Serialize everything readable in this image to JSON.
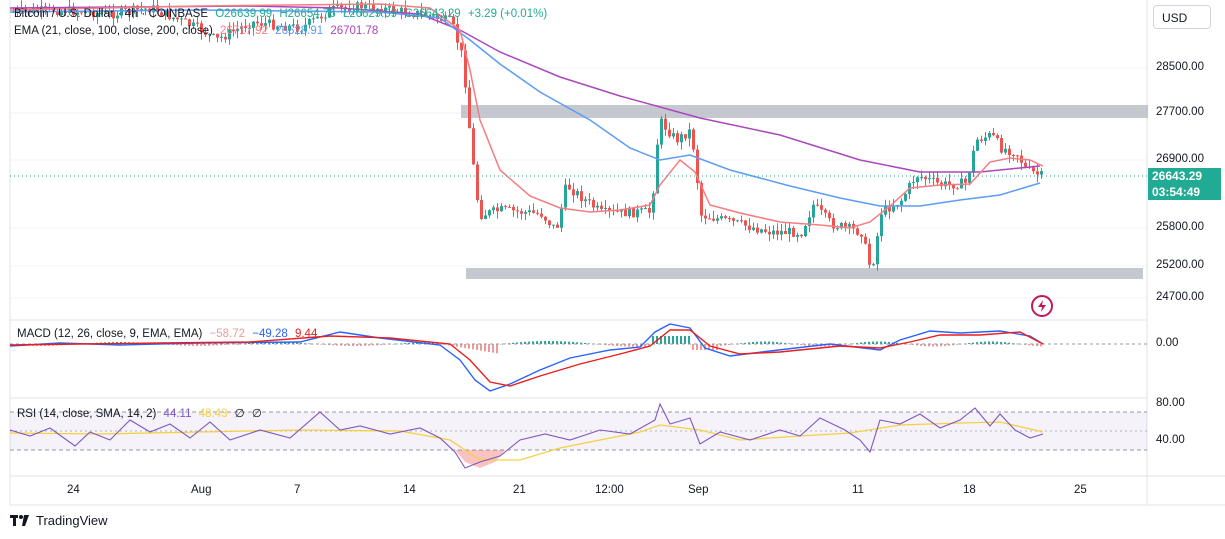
{
  "legend": {
    "symbol": "Bitcoin / U.S. Dollar",
    "interval": "4h",
    "exchange": "COINBASE",
    "open": "O26639.99",
    "high": "H26654.76",
    "low": "L26629.09",
    "close": "C26643.29",
    "change": "+3.29 (+0.01%)",
    "ema_label": "EMA (21, close, 100, close, 200, close)",
    "ema_values": [
      "26717.92",
      "26528.91",
      "26701.78"
    ],
    "macd_label": "MACD (12, 26, close, 9, EMA, EMA)",
    "macd_values": [
      "−58.72",
      "−49.28",
      "9.44"
    ],
    "rsi_label": "RSI (14, close, SMA, 14, 2)",
    "rsi_values": [
      "44.11",
      "48.43",
      "∅",
      "∅"
    ]
  },
  "currency_button": "USD",
  "last_price": "26643.29",
  "countdown": "03:54:49",
  "price_axis": [
    "28500.00",
    "27700.00",
    "26900.00",
    "25800.00",
    "25200.00",
    "24700.00"
  ],
  "macd_axis": [
    "0.00"
  ],
  "rsi_axis": [
    "80.00",
    "40.00"
  ],
  "time_axis": [
    "24",
    "Aug",
    "7",
    "14",
    "21",
    "12:00",
    "Sep",
    "11",
    "18",
    "25"
  ],
  "branding": "TradingView",
  "colors": {
    "up": "#26a69a",
    "down": "#ef5350",
    "ema21": "#f77c80",
    "ema100": "#5b9cf6",
    "ema200": "#ab47bc",
    "zone": "#b2b5be",
    "price_tag": "#22ab94"
  },
  "chart_data": {
    "type": "candlestick",
    "zones": [
      [
        27600,
        27760
      ],
      [
        25100,
        25240
      ]
    ],
    "ema21_path": [
      [
        0,
        28700
      ],
      [
        0.1,
        28900
      ],
      [
        0.3,
        28900
      ],
      [
        0.37,
        28800
      ],
      [
        0.4,
        27500
      ],
      [
        0.45,
        26400
      ],
      [
        0.5,
        26100
      ],
      [
        0.56,
        26100
      ],
      [
        0.58,
        26700
      ],
      [
        0.63,
        26100
      ],
      [
        0.7,
        25900
      ],
      [
        0.75,
        25700
      ],
      [
        0.8,
        26400
      ],
      [
        0.85,
        26600
      ],
      [
        0.88,
        26900
      ],
      [
        0.9,
        26700
      ]
    ],
    "ema100_path": [
      [
        0,
        29200
      ],
      [
        0.3,
        29100
      ],
      [
        0.4,
        28600
      ],
      [
        0.5,
        27400
      ],
      [
        0.58,
        26800
      ],
      [
        0.66,
        26200
      ],
      [
        0.75,
        25900
      ],
      [
        0.8,
        26300
      ],
      [
        0.85,
        26500
      ],
      [
        0.9,
        26500
      ]
    ],
    "ema200_path": [
      [
        0,
        29400
      ],
      [
        0.3,
        29200
      ],
      [
        0.4,
        28700
      ],
      [
        0.55,
        27400
      ],
      [
        0.75,
        26800
      ],
      [
        0.82,
        26800
      ],
      [
        0.9,
        26750
      ]
    ]
  }
}
